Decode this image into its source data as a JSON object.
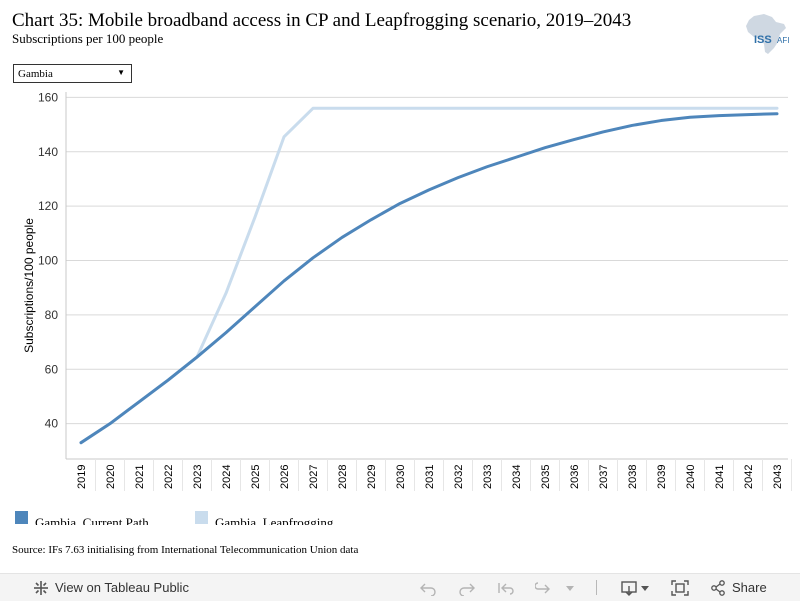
{
  "header": {
    "title": "Chart 35: Mobile broadband access in CP and Leapfrogging scenario, 2019–2043",
    "subtitle": "Subscriptions per 100 people",
    "logo_text": "ISS",
    "logo_suffix": "AFI"
  },
  "filter": {
    "selected": "Gambia"
  },
  "chart_data": {
    "type": "line",
    "ylabel": "Subscriptions/100 people",
    "xlabel": "",
    "ylim": [
      27,
      162
    ],
    "yticks": [
      40,
      60,
      80,
      100,
      120,
      140,
      160
    ],
    "grid": true,
    "legend_position": "bottom-left",
    "x": [
      "2019",
      "2020",
      "2021",
      "2022",
      "2023",
      "2024",
      "2025",
      "2026",
      "2027",
      "2028",
      "2029",
      "2030",
      "2031",
      "2032",
      "2033",
      "2034",
      "2035",
      "2036",
      "2037",
      "2038",
      "2039",
      "2040",
      "2041",
      "2042",
      "2043"
    ],
    "series": [
      {
        "name": "Gambia, Current Path",
        "color": "#4e86bb",
        "values": [
          33,
          40,
          48,
          56,
          64.5,
          73.5,
          83,
          92.5,
          101,
          108.5,
          115,
          121,
          126,
          130.5,
          134.5,
          138,
          141.5,
          144.5,
          147.3,
          149.7,
          151.5,
          152.7,
          153.3,
          153.7,
          154
        ]
      },
      {
        "name": "Gambia, Leapfrogging",
        "color": "#c9dced",
        "values": [
          33,
          40,
          48,
          56,
          64.5,
          88,
          116,
          145.5,
          156,
          156,
          156,
          156,
          156,
          156,
          156,
          156,
          156,
          156,
          156,
          156,
          156,
          156,
          156,
          156,
          156
        ]
      }
    ]
  },
  "source": "Source: IFs 7.63 initialising from International Telecommunication Union data",
  "toolbar": {
    "view_label": "View on Tableau Public",
    "share_label": "Share"
  }
}
